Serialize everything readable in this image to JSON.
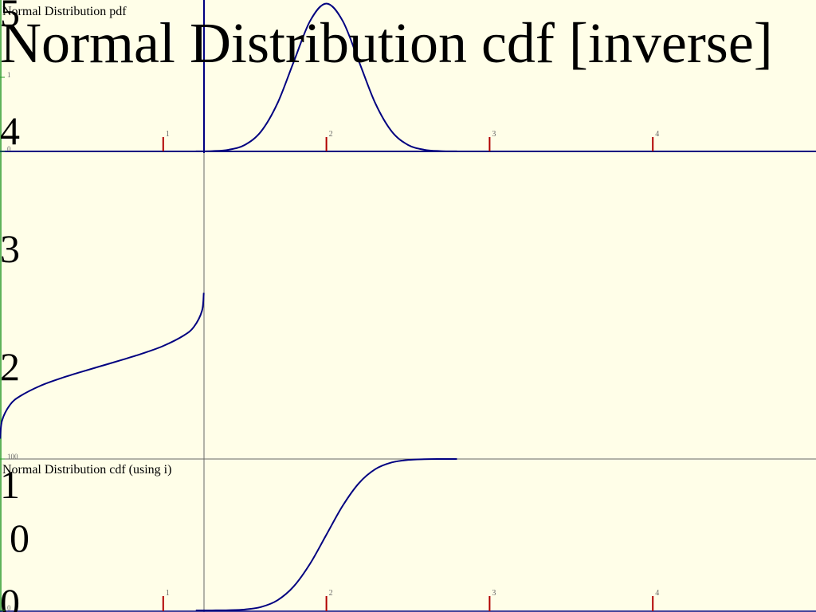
{
  "chart_data": [
    {
      "type": "line",
      "title": "Normal Distribution pdf",
      "x": [
        1.2,
        1.3,
        1.4,
        1.5,
        1.6,
        1.7,
        1.8,
        1.9,
        2.0,
        2.1,
        2.2,
        2.3,
        2.4,
        2.5,
        2.6,
        2.7,
        2.8
      ],
      "values": [
        0.0007,
        0.0044,
        0.0222,
        0.0876,
        0.27,
        0.648,
        1.21,
        1.76,
        1.995,
        1.76,
        1.21,
        0.648,
        0.27,
        0.0876,
        0.0222,
        0.0044,
        0.0007
      ],
      "color": "#000080",
      "xlim": [
        0,
        5
      ],
      "xticks": [
        1,
        2,
        3,
        4
      ],
      "ylim": [
        0,
        2
      ],
      "yticks": [
        0,
        1
      ]
    },
    {
      "type": "line",
      "title": "Normal Distribution cdf [inverse]",
      "x": [
        0.001,
        0.01,
        0.05,
        0.1,
        0.2,
        0.3,
        0.4,
        0.5,
        0.6,
        0.7,
        0.8,
        0.9,
        0.95,
        0.99,
        0.999
      ],
      "values": [
        1.382,
        1.535,
        1.671,
        1.744,
        1.832,
        1.895,
        1.949,
        2.0,
        2.051,
        2.105,
        2.168,
        2.256,
        2.329,
        2.465,
        2.618
      ],
      "color": "#000080",
      "xlim": [
        0,
        1
      ],
      "ylim": [
        0,
        5
      ],
      "yticks": [
        0,
        1,
        2,
        3,
        4,
        5
      ],
      "annotations": [
        "0"
      ]
    },
    {
      "type": "line",
      "title": "Normal Distribution cdf (using i)",
      "x": [
        1.2,
        1.3,
        1.4,
        1.5,
        1.6,
        1.7,
        1.8,
        1.9,
        2.0,
        2.1,
        2.2,
        2.3,
        2.4,
        2.5,
        2.6,
        2.7,
        2.8
      ],
      "values": [
        0.003,
        0.023,
        0.135,
        0.621,
        2.275,
        6.681,
        15.87,
        30.85,
        50,
        69.15,
        84.13,
        93.32,
        97.73,
        99.38,
        99.87,
        99.98,
        99.997
      ],
      "color": "#000080",
      "xlim": [
        0,
        5
      ],
      "xticks": [
        1,
        2,
        3,
        4
      ],
      "ylim": [
        0,
        100
      ],
      "yticks": [
        0,
        100
      ]
    }
  ]
}
